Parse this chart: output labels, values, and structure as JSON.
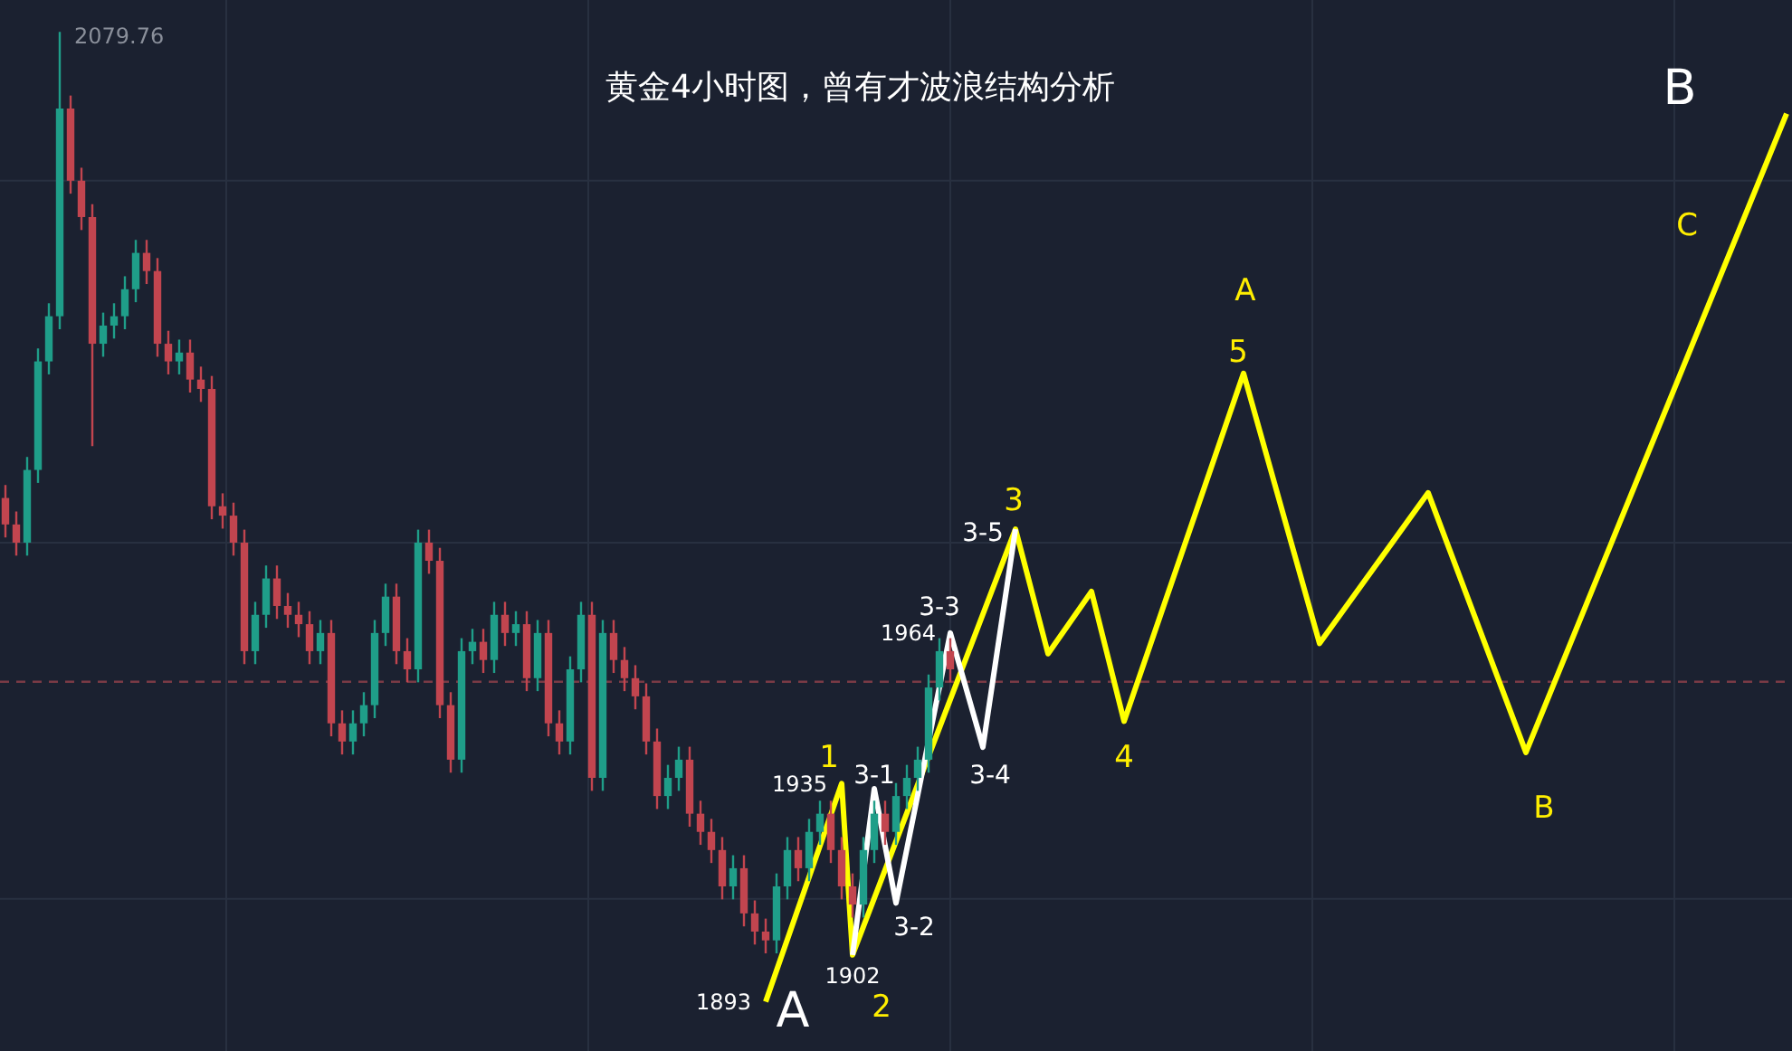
{
  "chart_data": {
    "type": "candlestick",
    "title": "黄金4小时图，曾有才波浪结构分析",
    "categories": [
      null,
      null,
      null,
      null,
      null,
      null,
      null,
      null,
      null,
      null,
      null,
      null,
      null,
      null,
      null,
      null,
      null,
      null,
      null,
      null,
      null,
      null,
      null,
      null,
      null,
      null,
      null,
      null,
      null,
      null,
      null,
      null,
      null,
      null,
      null,
      null,
      null,
      null,
      null,
      null,
      null,
      null,
      null,
      null,
      null,
      null,
      null,
      null,
      null,
      null,
      null,
      null,
      null,
      null,
      null,
      null,
      null,
      null,
      null,
      null,
      null,
      null,
      null,
      null,
      null,
      null,
      null,
      null,
      null,
      null,
      null,
      null,
      null,
      null,
      null,
      null,
      null,
      null,
      null,
      null,
      null,
      null,
      null,
      null,
      null,
      null,
      null,
      null,
      null,
      null,
      null,
      null,
      null,
      null,
      null,
      null,
      null,
      null,
      null,
      null,
      null,
      null,
      null,
      null,
      null,
      null,
      null,
      null,
      null,
      null,
      null,
      null,
      null,
      null,
      null,
      null,
      null,
      null,
      null,
      null,
      null,
      null,
      null,
      null,
      null,
      null,
      null,
      null,
      null,
      null,
      null,
      null,
      null,
      null,
      null,
      null,
      null,
      null,
      null,
      null,
      null,
      null,
      null,
      null,
      null,
      null,
      null,
      null,
      null,
      null,
      null,
      null,
      null,
      null,
      null,
      null,
      null,
      null,
      null,
      null,
      null,
      null,
      null,
      null,
      null
    ],
    "ohlc": [
      [
        1990.0,
        1992.5,
        1982.4,
        1984.9
      ],
      [
        1984.9,
        1987.4,
        1978.9,
        1981.4
      ],
      [
        1981.4,
        1997.9,
        1978.9,
        1995.4
      ],
      [
        1995.4,
        2018.8,
        1992.9,
        2016.3
      ],
      [
        2016.3,
        2027.5,
        2013.8,
        2025.0
      ],
      [
        2025.0,
        2079.76,
        2022.5,
        2065.0
      ],
      [
        2065.0,
        2067.5,
        2048.6,
        2051.1
      ],
      [
        2051.1,
        2053.6,
        2041.6,
        2044.1
      ],
      [
        2044.1,
        2046.6,
        2000.0,
        2019.7
      ],
      [
        2019.7,
        2025.7,
        2017.2,
        2023.2
      ],
      [
        2023.2,
        2027.5,
        2020.7,
        2025.0
      ],
      [
        2025.0,
        2032.7,
        2022.5,
        2030.2
      ],
      [
        2030.2,
        2039.7,
        2027.7,
        2037.2
      ],
      [
        2037.2,
        2039.7,
        2031.2,
        2033.7
      ],
      [
        2033.7,
        2036.2,
        2017.2,
        2019.7
      ],
      [
        2019.7,
        2022.2,
        2013.8,
        2016.3
      ],
      [
        2016.3,
        2020.5,
        2013.8,
        2018.0
      ],
      [
        2018.0,
        2020.5,
        2010.3,
        2012.8
      ],
      [
        2012.8,
        2015.3,
        2008.5,
        2011.0
      ],
      [
        2011.0,
        2013.5,
        1985.9,
        1988.4
      ],
      [
        1988.4,
        1990.9,
        1984.1,
        1986.6
      ],
      [
        1986.6,
        1989.1,
        1978.9,
        1981.4
      ],
      [
        1981.4,
        1983.9,
        1958.0,
        1960.5
      ],
      [
        1960.5,
        1970.0,
        1958.0,
        1967.5
      ],
      [
        1967.5,
        1977.0,
        1965.0,
        1974.5
      ],
      [
        1974.5,
        1977.0,
        1966.7,
        1969.2
      ],
      [
        1969.2,
        1971.7,
        1965.0,
        1967.5
      ],
      [
        1967.5,
        1970.0,
        1963.2,
        1965.7
      ],
      [
        1965.7,
        1968.2,
        1958.0,
        1960.5
      ],
      [
        1960.5,
        1966.5,
        1958.0,
        1964.0
      ],
      [
        1964.0,
        1966.5,
        1944.1,
        1946.6
      ],
      [
        1946.6,
        1949.1,
        1940.6,
        1943.1
      ],
      [
        1943.1,
        1949.1,
        1940.6,
        1946.6
      ],
      [
        1946.6,
        1952.6,
        1944.1,
        1950.1
      ],
      [
        1950.1,
        1966.5,
        1947.6,
        1964.0
      ],
      [
        1964.0,
        1973.5,
        1961.5,
        1971.0
      ],
      [
        1971.0,
        1973.5,
        1958.0,
        1960.5
      ],
      [
        1960.5,
        1963.0,
        1954.5,
        1957.0
      ],
      [
        1957.0,
        1983.9,
        1954.5,
        1981.4
      ],
      [
        1981.4,
        1983.9,
        1975.4,
        1977.9
      ],
      [
        1977.9,
        1980.4,
        1947.6,
        1950.1
      ],
      [
        1950.1,
        1952.6,
        1937.1,
        1939.6
      ],
      [
        1939.6,
        1963.0,
        1937.1,
        1960.5
      ],
      [
        1960.5,
        1964.8,
        1958.0,
        1962.3
      ],
      [
        1962.3,
        1964.8,
        1956.3,
        1958.8
      ],
      [
        1958.8,
        1970.0,
        1956.3,
        1967.5
      ],
      [
        1967.5,
        1970.0,
        1961.5,
        1964.0
      ],
      [
        1964.0,
        1968.2,
        1961.5,
        1965.7
      ],
      [
        1965.7,
        1968.2,
        1952.8,
        1955.3
      ],
      [
        1955.3,
        1966.5,
        1952.8,
        1964.0
      ],
      [
        1964.0,
        1966.5,
        1944.1,
        1946.6
      ],
      [
        1946.6,
        1949.1,
        1940.6,
        1943.1
      ],
      [
        1943.1,
        1959.5,
        1940.6,
        1957.0
      ],
      [
        1957.0,
        1970.0,
        1954.5,
        1967.5
      ],
      [
        1967.5,
        1970.0,
        1933.6,
        1936.1
      ],
      [
        1936.1,
        1966.5,
        1933.6,
        1964.0
      ],
      [
        1964.0,
        1966.5,
        1956.3,
        1958.8
      ],
      [
        1958.8,
        1961.3,
        1952.8,
        1955.3
      ],
      [
        1955.3,
        1957.8,
        1949.3,
        1951.8
      ],
      [
        1951.8,
        1954.3,
        1940.6,
        1943.1
      ],
      [
        1943.1,
        1945.6,
        1930.1,
        1932.6
      ],
      [
        1932.6,
        1938.6,
        1930.1,
        1936.1
      ],
      [
        1936.1,
        1942.1,
        1933.6,
        1939.6
      ],
      [
        1939.6,
        1942.1,
        1926.7,
        1929.2
      ],
      [
        1929.2,
        1931.7,
        1923.2,
        1925.7
      ],
      [
        1925.7,
        1928.2,
        1919.7,
        1922.2
      ],
      [
        1922.2,
        1924.7,
        1912.7,
        1915.2
      ],
      [
        1915.2,
        1921.2,
        1912.7,
        1918.7
      ],
      [
        1918.7,
        1921.2,
        1907.5,
        1910.0
      ],
      [
        1910.0,
        1912.5,
        1904.0,
        1906.5
      ],
      [
        1906.5,
        1909.0,
        1902.3,
        1904.8
      ],
      [
        1904.8,
        1917.7,
        1902.3,
        1915.2
      ],
      [
        1915.2,
        1924.7,
        1912.7,
        1922.2
      ],
      [
        1922.2,
        1924.7,
        1916.2,
        1918.7
      ],
      [
        1918.7,
        1928.2,
        1916.2,
        1925.7
      ],
      [
        1925.7,
        1931.7,
        1923.2,
        1929.2
      ],
      [
        1929.2,
        1931.7,
        1919.7,
        1922.2
      ],
      [
        1922.2,
        1924.7,
        1912.7,
        1915.2
      ],
      [
        1915.2,
        1917.7,
        1909.2,
        1911.7
      ],
      [
        1911.7,
        1924.7,
        1909.2,
        1922.2
      ],
      [
        1922.2,
        1931.7,
        1919.7,
        1929.2
      ],
      [
        1929.2,
        1931.7,
        1923.2,
        1925.7
      ],
      [
        1925.7,
        1935.1,
        1923.2,
        1932.6
      ],
      [
        1932.6,
        1938.6,
        1930.1,
        1936.1
      ],
      [
        1936.1,
        1942.1,
        1933.6,
        1939.6
      ],
      [
        1939.6,
        1956.0,
        1937.1,
        1953.5
      ],
      [
        1953.5,
        1963.0,
        1951.0,
        1960.5
      ],
      [
        1960.5,
        1963.0,
        1954.5,
        1957.0
      ],
      null,
      null,
      null,
      null,
      null,
      null,
      null,
      null,
      null,
      null,
      null,
      null,
      null,
      null,
      null,
      null,
      null,
      null,
      null,
      null,
      null,
      null,
      null,
      null,
      null,
      null,
      null,
      null,
      null,
      null,
      null,
      null,
      null,
      null,
      null,
      null,
      null,
      null,
      null,
      null,
      null,
      null,
      null,
      null,
      null,
      null,
      null,
      null,
      null,
      null,
      null,
      null,
      null,
      null,
      null,
      null,
      null,
      null,
      null,
      null,
      null,
      null,
      null,
      null,
      null,
      null,
      null,
      null,
      null,
      null,
      null,
      null,
      null,
      null,
      null,
      null,
      null
    ],
    "series": [
      {
        "type": "line",
        "color": "#ffff00",
        "values": [
          null,
          null,
          null,
          null,
          null,
          null,
          null,
          null,
          null,
          null,
          null,
          null,
          null,
          null,
          null,
          null,
          null,
          null,
          null,
          null,
          null,
          null,
          null,
          null,
          null,
          null,
          null,
          null,
          null,
          null,
          null,
          null,
          null,
          null,
          null,
          null,
          null,
          null,
          null,
          null,
          null,
          null,
          null,
          null,
          null,
          null,
          null,
          null,
          null,
          null,
          null,
          null,
          null,
          null,
          null,
          null,
          null,
          null,
          null,
          null,
          null,
          null,
          null,
          null,
          null,
          null,
          null,
          null,
          null,
          null,
          1893,
          null,
          null,
          null,
          null,
          null,
          null,
          1935,
          1902,
          null,
          null,
          null,
          null,
          null,
          null,
          null,
          null,
          null,
          null,
          null,
          null,
          null,
          null,
          1984,
          null,
          null,
          1960,
          null,
          null,
          null,
          1972,
          null,
          null,
          1947,
          null,
          null,
          null,
          null,
          null,
          null,
          null,
          null,
          null,
          null,
          2014,
          null,
          null,
          null,
          null,
          null,
          null,
          1962,
          null,
          null,
          null,
          null,
          null,
          null,
          null,
          null,
          null,
          1991,
          null,
          null,
          null,
          null,
          null,
          null,
          null,
          null,
          1941,
          null,
          null,
          null,
          null,
          null,
          null,
          null,
          null,
          null,
          null,
          null,
          null,
          null,
          null,
          null,
          null,
          null,
          null,
          null,
          null,
          null,
          null,
          null,
          2064
        ],
        "value_labels": [
          null,
          null,
          null,
          null,
          null,
          null,
          null,
          null,
          null,
          null,
          null,
          null,
          null,
          null,
          null,
          null,
          null,
          null,
          null,
          null,
          null,
          null,
          null,
          null,
          null,
          null,
          null,
          null,
          null,
          null,
          null,
          null,
          null,
          null,
          null,
          null,
          null,
          null,
          null,
          null,
          null,
          null,
          null,
          null,
          null,
          null,
          null,
          null,
          null,
          null,
          null,
          null,
          null,
          null,
          null,
          null,
          null,
          null,
          null,
          null,
          null,
          null,
          null,
          null,
          null,
          null,
          null,
          null,
          null,
          null,
          "1893",
          null,
          null,
          null,
          null,
          null,
          null,
          "1935",
          "1902",
          null,
          null,
          null,
          null,
          null,
          null,
          null,
          null,
          null,
          null,
          null,
          null,
          null,
          null,
          null,
          null,
          null,
          null,
          null,
          null,
          null,
          null,
          null,
          null,
          null,
          null,
          null,
          null,
          null,
          null,
          null,
          null,
          null,
          null,
          null,
          null,
          null,
          null,
          null,
          null,
          null,
          null,
          null,
          null,
          null,
          null,
          null,
          null,
          null,
          null,
          null,
          null,
          null,
          null,
          null,
          null,
          null,
          null,
          null,
          null,
          null,
          null,
          null,
          null,
          null,
          null,
          null,
          null,
          null,
          null,
          null,
          null,
          null,
          null,
          null,
          null,
          null,
          null,
          null,
          null,
          null,
          null,
          null,
          null,
          null,
          null
        ]
      },
      {
        "type": "line",
        "color": "#ffffff",
        "values": [
          null,
          null,
          null,
          null,
          null,
          null,
          null,
          null,
          null,
          null,
          null,
          null,
          null,
          null,
          null,
          null,
          null,
          null,
          null,
          null,
          null,
          null,
          null,
          null,
          null,
          null,
          null,
          null,
          null,
          null,
          null,
          null,
          null,
          null,
          null,
          null,
          null,
          null,
          null,
          null,
          null,
          null,
          null,
          null,
          null,
          null,
          null,
          null,
          null,
          null,
          null,
          null,
          null,
          null,
          null,
          null,
          null,
          null,
          null,
          null,
          null,
          null,
          null,
          null,
          null,
          null,
          null,
          null,
          null,
          null,
          null,
          null,
          null,
          null,
          null,
          null,
          null,
          null,
          1902,
          null,
          1934,
          null,
          1912,
          null,
          null,
          null,
          null,
          1964,
          null,
          null,
          1942,
          null,
          null,
          1984,
          null,
          null,
          null,
          null,
          null,
          null,
          null,
          null,
          null,
          null,
          null,
          null,
          null,
          null,
          null,
          null,
          null,
          null,
          null,
          null,
          null,
          null,
          null,
          null,
          null,
          null,
          null,
          null,
          null,
          null,
          null,
          null,
          null,
          null,
          null,
          null,
          null,
          null,
          null,
          null,
          null,
          null,
          null,
          null,
          null,
          null,
          null,
          null,
          null,
          null,
          null,
          null,
          null,
          null,
          null,
          null,
          null,
          null,
          null,
          null,
          null,
          null,
          null,
          null,
          null,
          null,
          null,
          null,
          null,
          null,
          null
        ],
        "value_labels": [
          null,
          null,
          null,
          null,
          null,
          null,
          null,
          null,
          null,
          null,
          null,
          null,
          null,
          null,
          null,
          null,
          null,
          null,
          null,
          null,
          null,
          null,
          null,
          null,
          null,
          null,
          null,
          null,
          null,
          null,
          null,
          null,
          null,
          null,
          null,
          null,
          null,
          null,
          null,
          null,
          null,
          null,
          null,
          null,
          null,
          null,
          null,
          null,
          null,
          null,
          null,
          null,
          null,
          null,
          null,
          null,
          null,
          null,
          null,
          null,
          null,
          null,
          null,
          null,
          null,
          null,
          null,
          null,
          null,
          null,
          null,
          null,
          null,
          null,
          null,
          null,
          null,
          null,
          null,
          null,
          null,
          null,
          null,
          null,
          null,
          null,
          null,
          "1964",
          null,
          null,
          null,
          null,
          null,
          null,
          null,
          null,
          null,
          null,
          null,
          null,
          null,
          null,
          null,
          null,
          null,
          null,
          null,
          null,
          null,
          null,
          null,
          null,
          null,
          null,
          null,
          null,
          null,
          null,
          null,
          null,
          null,
          null,
          null,
          null,
          null,
          null,
          null,
          null,
          null,
          null,
          null,
          null,
          null,
          null,
          null,
          null,
          null,
          null,
          null,
          null,
          null,
          null,
          null,
          null,
          null,
          null,
          null,
          null,
          null,
          null,
          null,
          null,
          null,
          null,
          null,
          null,
          null,
          null,
          null,
          null,
          null,
          null,
          null,
          null,
          null
        ]
      }
    ],
    "ref_lines": [
      {
        "axis": "y",
        "value": 1954.6,
        "color": "#7a3a45",
        "line_style": "dashed"
      }
    ],
    "annotations": [
      "1",
      "2",
      "3",
      "4",
      "5",
      "A",
      "B",
      "C",
      "3-1",
      "3-2",
      "3-3",
      "3-4",
      "3-5",
      "A",
      "B",
      "2079.76"
    ],
    "ylim": [
      1883.5,
      2085.9
    ],
    "yticks": [
      {
        "value": 1912.8,
        "label": null
      },
      {
        "value": 1981.4,
        "label": null
      },
      {
        "value": 2051.1,
        "label": null
      }
    ],
    "grid": true
  }
}
